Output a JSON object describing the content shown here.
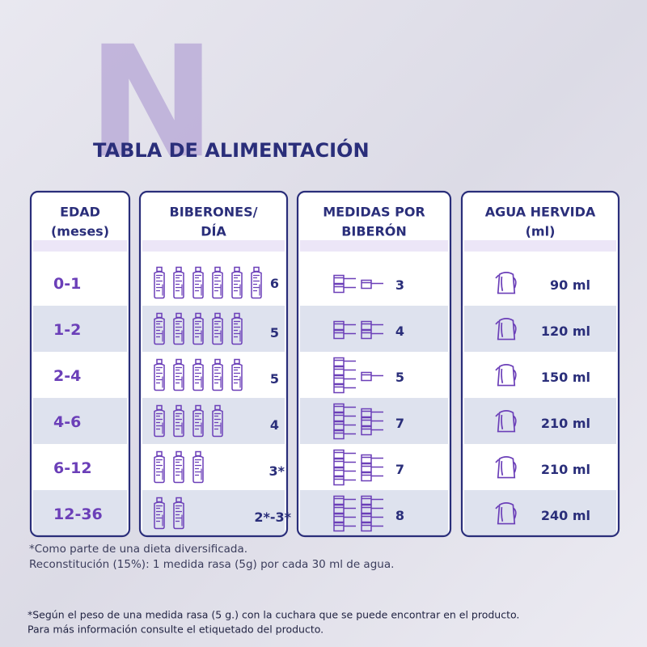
{
  "logo": "N",
  "title": "TABLA DE ALIMENTACIÓN",
  "table": {
    "headers": [
      [
        "EDAD",
        "(meses)"
      ],
      [
        "BIBERONES/",
        "DÍA"
      ],
      [
        "MEDIDAS POR",
        "BIBERÓN"
      ],
      [
        "AGUA HERVIDA",
        "(ml)"
      ]
    ],
    "rows": [
      {
        "edad": "0-1",
        "biberones": "6",
        "bottle_icons": 6,
        "medidas": 3,
        "agua": "90 ml"
      },
      {
        "edad": "1-2",
        "biberones": "5",
        "bottle_icons": 5,
        "medidas": 4,
        "agua": "120 ml"
      },
      {
        "edad": "2-4",
        "biberones": "5",
        "bottle_icons": 5,
        "medidas": 5,
        "agua": "150 ml"
      },
      {
        "edad": "4-6",
        "biberones": "4",
        "bottle_icons": 4,
        "medidas": 7,
        "agua": "210 ml"
      },
      {
        "edad": "6-12",
        "biberones": "3*",
        "bottle_icons": 3,
        "medidas": 7,
        "agua": "210 ml"
      },
      {
        "edad": "12-36",
        "biberones": "2*-3*",
        "bottle_icons": 2,
        "medidas": 8,
        "agua": "240 ml"
      }
    ]
  },
  "footnotes": [
    "*Como parte de una dieta diversificada.",
    "Reconstitución (15%): 1 medida rasa (5g) por cada 30 ml de agua."
  ],
  "disclaimer": [
    "*Según el peso de una medida rasa (5 g.) con la cuchara que se puede encontrar en el producto.",
    "Para más información consulte el etiquetado del producto."
  ]
}
